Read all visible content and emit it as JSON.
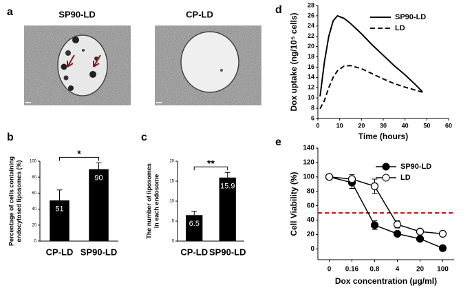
{
  "figure_a": {
    "label": "a",
    "images": [
      {
        "title": "SP90-LD"
      },
      {
        "title": "CP-LD"
      }
    ]
  },
  "chart_data": [
    {
      "panel": "b",
      "type": "bar",
      "ylabel": [
        "Percentage of cells containing",
        "endocytosed liposomes (%)"
      ],
      "categories": [
        "CP-LD",
        "SP90-LD"
      ],
      "values": [
        51,
        90
      ],
      "errors": [
        13,
        8
      ],
      "color": "#000000",
      "ylim": [
        0,
        100
      ],
      "yticks": [
        0,
        20,
        40,
        60,
        80,
        100
      ],
      "annotation": "*"
    },
    {
      "panel": "c",
      "type": "bar",
      "ylabel": [
        "The number of liposomes",
        "in each endosome"
      ],
      "categories": [
        "CP-LD",
        "SP90-LD"
      ],
      "values": [
        6.5,
        15.9
      ],
      "errors": [
        1,
        1.3
      ],
      "color": "#000000",
      "ylim": [
        0,
        20
      ],
      "yticks": [
        0,
        5,
        10,
        15,
        20
      ],
      "annotation": "**"
    },
    {
      "panel": "d",
      "type": "line",
      "xlabel": "Time (hours)",
      "ylabel": [
        "Dox uptake (ng/10⁵ cells)"
      ],
      "x": [
        1,
        3,
        5,
        7,
        9,
        12,
        15,
        20,
        25,
        30,
        35,
        40,
        45,
        48
      ],
      "series": [
        {
          "name": "SP90-LD",
          "color": "#000000",
          "linestyle": "solid",
          "values": [
            10.3,
            17,
            22,
            25,
            26,
            25.5,
            24.5,
            22.5,
            20.3,
            18.3,
            16.3,
            14.5,
            12.5,
            11.2
          ]
        },
        {
          "name": "LD",
          "color": "#000000",
          "linestyle": "dashed",
          "values": [
            7.9,
            9.5,
            12,
            14,
            15.3,
            16.2,
            16.3,
            15.7,
            14.7,
            13.7,
            12.8,
            12.1,
            11.5,
            11.1
          ]
        }
      ],
      "xlim": [
        0,
        60
      ],
      "xticks": [
        0,
        10,
        20,
        30,
        40,
        50,
        60
      ],
      "ylim": [
        6,
        28
      ],
      "yticks": [
        6,
        8,
        10,
        12,
        14,
        16,
        18,
        20,
        22,
        24,
        26,
        28
      ],
      "legend": "upper right"
    },
    {
      "panel": "e",
      "type": "line",
      "xlabel": "Dox concentration (µg/ml)",
      "ylabel": [
        "Cell Viability (%)"
      ],
      "categories": [
        "0",
        "0.16",
        "0.8",
        "4",
        "20",
        "100"
      ],
      "series": [
        {
          "name": "SP90-LD",
          "color": "#000000",
          "marker": "filled",
          "values": [
            100,
            92,
            33,
            21,
            14,
            1
          ],
          "errors": [
            3,
            8,
            6,
            3,
            2,
            2
          ]
        },
        {
          "name": "LD",
          "color": "#000000",
          "marker": "open",
          "values": [
            100,
            97,
            87,
            34,
            24,
            21
          ],
          "errors": [
            3,
            6,
            10,
            5,
            2,
            2
          ]
        }
      ],
      "ylim": [
        -15,
        140
      ],
      "yticks": [
        0,
        20,
        40,
        60,
        80,
        100,
        120,
        140
      ],
      "reference_line": {
        "value": 50,
        "color": "#cc0000"
      },
      "legend": "upper right"
    }
  ]
}
